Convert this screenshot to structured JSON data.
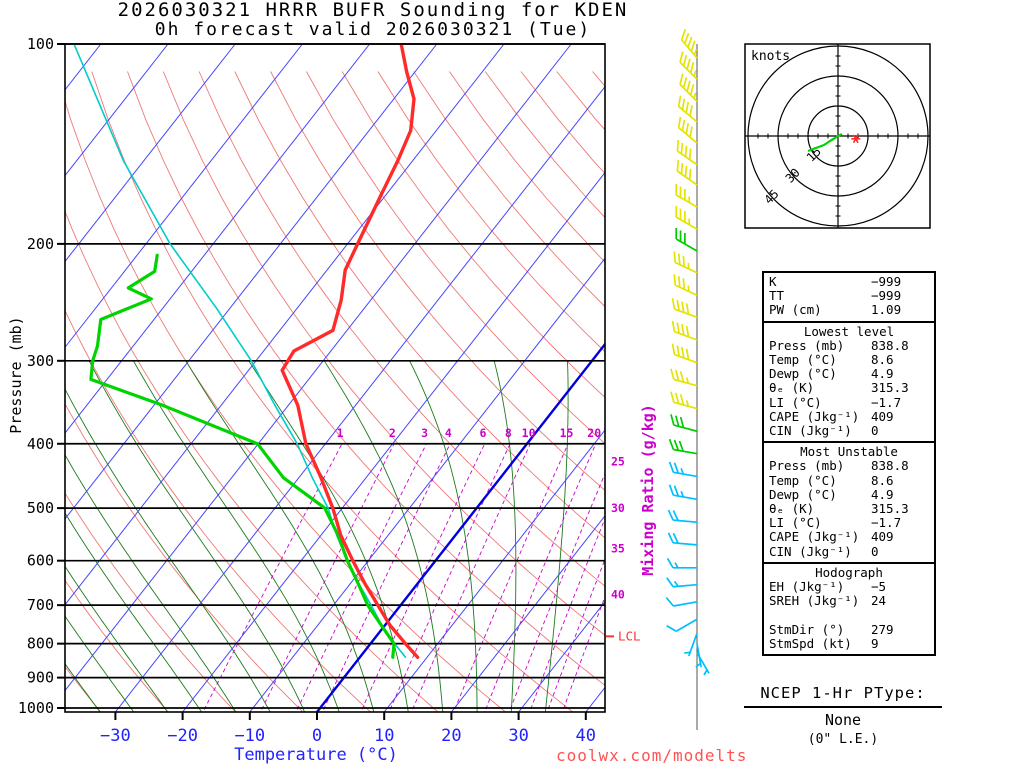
{
  "title": {
    "line1": "2026030321 HRRR BUFR Sounding for KDEN",
    "line2": "0h forecast valid 2026030321 (Tue)"
  },
  "axes": {
    "pressure_label": "Pressure (mb)",
    "temperature_label": "Temperature (°C)",
    "mixing_ratio_label": "Mixing Ratio (g/kg)",
    "pressure_ticks": [
      100,
      200,
      300,
      400,
      500,
      600,
      700,
      800,
      900,
      1000
    ],
    "temperature_ticks": [
      -30,
      -20,
      -10,
      0,
      10,
      20,
      30,
      40
    ]
  },
  "colors": {
    "temperature": "#ff2a2a",
    "dewpoint": "#00d400",
    "wetbulb": "#00cccc",
    "isotherm": "#4545ff",
    "isotherm_zero": "#0000dd",
    "dry_adiabat": "#ef7878",
    "moist_adiabat": "#1c7a1c",
    "mixing_ratio": "#cc00cc",
    "isobar": "#000000",
    "barb_low": "#00bfff",
    "barb_mid": "#00cc00",
    "barb_high": "#e4e400",
    "credit": "#ff5252",
    "lcl": "#ff3333",
    "temp_axis_text": "#2222ff"
  },
  "chart_data": {
    "type": "skewt_sounding",
    "station": "KDEN",
    "run": "2026030321",
    "forecast_hour": "0h",
    "pressure_range_mb": [
      100,
      1000
    ],
    "temperature_range_c": [
      -30,
      40
    ],
    "lcl_mb": 780,
    "mixing_ratio_lines_gkg": [
      1,
      2,
      3,
      4,
      6,
      8,
      10,
      15,
      20,
      25,
      30,
      35,
      40
    ],
    "temperature_profile": [
      [
        100,
        -65.3
      ],
      [
        110,
        -61.3
      ],
      [
        121,
        -57.0
      ],
      [
        135,
        -53.8
      ],
      [
        150,
        -52.2
      ],
      [
        169,
        -50.7
      ],
      [
        200,
        -48.5
      ],
      [
        219,
        -47.3
      ],
      [
        243,
        -44.4
      ],
      [
        270,
        -42.1
      ],
      [
        290,
        -45.5
      ],
      [
        310,
        -45.0
      ],
      [
        350,
        -38.6
      ],
      [
        400,
        -32.9
      ],
      [
        450,
        -26.7
      ],
      [
        500,
        -21.4
      ],
      [
        550,
        -17.0
      ],
      [
        600,
        -12.3
      ],
      [
        650,
        -7.8
      ],
      [
        700,
        -3.4
      ],
      [
        750,
        0.7
      ],
      [
        800,
        5.2
      ],
      [
        838.8,
        8.6
      ]
    ],
    "dewpoint_profile": [
      [
        208,
        -77.0
      ],
      [
        220,
        -75.5
      ],
      [
        233,
        -77.5
      ],
      [
        242,
        -72.8
      ],
      [
        260,
        -77.9
      ],
      [
        285,
        -75.3
      ],
      [
        300,
        -74.3
      ],
      [
        320,
        -72.4
      ],
      [
        350,
        -58.7
      ],
      [
        400,
        -40.1
      ],
      [
        450,
        -32.3
      ],
      [
        500,
        -22.6
      ],
      [
        550,
        -17.4
      ],
      [
        600,
        -13.1
      ],
      [
        650,
        -8.8
      ],
      [
        700,
        -4.9
      ],
      [
        750,
        -0.6
      ],
      [
        800,
        3.5
      ],
      [
        838.8,
        4.9
      ]
    ],
    "wetbulb_profile": [
      [
        100,
        -114.0
      ],
      [
        150,
        -93.0
      ],
      [
        200,
        -76.4
      ],
      [
        250,
        -62.0
      ],
      [
        300,
        -50.7
      ],
      [
        350,
        -42.0
      ],
      [
        400,
        -34.2
      ],
      [
        450,
        -28.0
      ],
      [
        500,
        -22.1
      ],
      [
        550,
        -17.6
      ],
      [
        600,
        -13.1
      ],
      [
        650,
        -8.7
      ],
      [
        700,
        -4.4
      ],
      [
        750,
        -0.5
      ],
      [
        800,
        3.6
      ],
      [
        838.8,
        6.8
      ]
    ],
    "wind_barbs": [
      {
        "p": 105,
        "dir": 320,
        "spd": 45
      },
      {
        "p": 113,
        "dir": 315,
        "spd": 45
      },
      {
        "p": 122,
        "dir": 315,
        "spd": 45
      },
      {
        "p": 131,
        "dir": 310,
        "spd": 40
      },
      {
        "p": 141,
        "dir": 310,
        "spd": 40
      },
      {
        "p": 152,
        "dir": 305,
        "spd": 40
      },
      {
        "p": 163,
        "dir": 305,
        "spd": 40
      },
      {
        "p": 176,
        "dir": 300,
        "spd": 35
      },
      {
        "p": 190,
        "dir": 300,
        "spd": 35
      },
      {
        "p": 205,
        "dir": 300,
        "spd": 30
      },
      {
        "p": 221,
        "dir": 295,
        "spd": 35
      },
      {
        "p": 239,
        "dir": 295,
        "spd": 35
      },
      {
        "p": 258,
        "dir": 290,
        "spd": 40
      },
      {
        "p": 279,
        "dir": 290,
        "spd": 40
      },
      {
        "p": 302,
        "dir": 290,
        "spd": 40
      },
      {
        "p": 327,
        "dir": 285,
        "spd": 35
      },
      {
        "p": 354,
        "dir": 285,
        "spd": 35
      },
      {
        "p": 383,
        "dir": 285,
        "spd": 30
      },
      {
        "p": 414,
        "dir": 280,
        "spd": 30
      },
      {
        "p": 448,
        "dir": 280,
        "spd": 25
      },
      {
        "p": 485,
        "dir": 280,
        "spd": 25
      },
      {
        "p": 525,
        "dir": 275,
        "spd": 20
      },
      {
        "p": 568,
        "dir": 275,
        "spd": 20
      },
      {
        "p": 615,
        "dir": 270,
        "spd": 15
      },
      {
        "p": 652,
        "dir": 265,
        "spd": 15
      },
      {
        "p": 692,
        "dir": 260,
        "spd": 10
      },
      {
        "p": 735,
        "dir": 240,
        "spd": 10
      },
      {
        "p": 772,
        "dir": 200,
        "spd": 5
      },
      {
        "p": 800,
        "dir": 170,
        "spd": 5
      },
      {
        "p": 825,
        "dir": 150,
        "spd": 5
      }
    ]
  },
  "hodograph": {
    "unit_label": "knots",
    "rings_kt": [
      15,
      30,
      45
    ],
    "trace_uv_kt": [
      [
        -15,
        -7.5
      ],
      [
        -11,
        -6
      ],
      [
        -7,
        -4.5
      ],
      [
        -4,
        -2.5
      ],
      [
        -1.5,
        -1
      ],
      [
        0,
        0
      ],
      [
        2,
        1
      ]
    ],
    "storm_motion": {
      "dir": 279,
      "spd": 9
    }
  },
  "lcl": {
    "label": "LCL"
  },
  "stats": {
    "sections": [
      {
        "rows": [
          [
            "K",
            "−999"
          ],
          [
            "TT",
            "−999"
          ],
          [
            "PW (cm)",
            "1.09"
          ]
        ]
      },
      {
        "header": "Lowest level",
        "rows": [
          [
            "Press (mb)",
            "838.8"
          ],
          [
            "Temp (°C)",
            "8.6"
          ],
          [
            "Dewp (°C)",
            "4.9"
          ],
          [
            "θₑ (K)",
            "315.3"
          ],
          [
            "LI (°C)",
            "−1.7"
          ],
          [
            "CAPE (Jkg⁻¹)",
            "409"
          ],
          [
            "CIN (Jkg⁻¹)",
            "0"
          ]
        ]
      },
      {
        "header": "Most Unstable",
        "rows": [
          [
            "Press (mb)",
            "838.8"
          ],
          [
            "Temp (°C)",
            "8.6"
          ],
          [
            "Dewp (°C)",
            "4.9"
          ],
          [
            "θₑ (K)",
            "315.3"
          ],
          [
            "LI (°C)",
            "−1.7"
          ],
          [
            "CAPE (Jkg⁻¹)",
            "409"
          ],
          [
            "CIN (Jkg⁻¹)",
            "0"
          ]
        ]
      },
      {
        "header": "Hodograph",
        "rows": [
          [
            "EH (Jkg⁻¹)",
            "−5"
          ],
          [
            "SREH (Jkg⁻¹)",
            "24"
          ],
          [
            "",
            ""
          ],
          [
            "StmDir (°)",
            "279"
          ],
          [
            "StmSpd (kt)",
            "9"
          ]
        ]
      }
    ]
  },
  "ptype": {
    "title": "NCEP 1-Hr PType:",
    "value": "None",
    "note": "(0\" L.E.)"
  },
  "credit": "coolwx.com/modelts"
}
